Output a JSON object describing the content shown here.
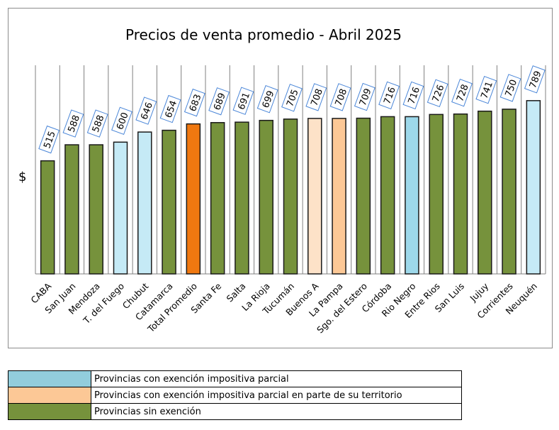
{
  "chart_data": {
    "type": "bar",
    "title": "Precios de venta promedio - Abril 2025",
    "ylabel": "$",
    "xlabel": "",
    "ylim": [
      0,
      950
    ],
    "grid": "vertical lines between categories",
    "categories": [
      "CABA",
      "San Juan",
      "Mendoza",
      "T. del Fuego",
      "Chubut",
      "Catamarca",
      "Total Promedio",
      "Santa Fe",
      "Salta",
      "La Rioja",
      "Tucumán",
      "Buenos A",
      "La Pampa",
      "Sgo. del Estero",
      "Córdoba",
      "Rio Negro",
      "Entre Rios",
      "San Luis",
      "Jujuy",
      "Corrientes",
      "Neuquén"
    ],
    "values": [
      515,
      588,
      588,
      600,
      646,
      654,
      683,
      689,
      691,
      699,
      705,
      708,
      708,
      709,
      716,
      716,
      726,
      728,
      741,
      750,
      789
    ],
    "bar_colors": [
      "#76923c",
      "#76923c",
      "#76923c",
      "#c5eaf6",
      "#c5eaf6",
      "#76923c",
      "#f07810",
      "#76923c",
      "#76923c",
      "#76923c",
      "#76923c",
      "#fde2c8",
      "#fcc896",
      "#76923c",
      "#76923c",
      "#9dd8ea",
      "#76923c",
      "#76923c",
      "#76923c",
      "#76923c",
      "#c5eaf6"
    ]
  },
  "legend": [
    {
      "color": "#92cddc",
      "label": "Provincias con exención impositiva parcial"
    },
    {
      "color": "#fcc896",
      "label": "Provincias con exención impositiva parcial en parte de su territorio"
    },
    {
      "color": "#76923c",
      "label": "Provincias sin exención"
    }
  ]
}
